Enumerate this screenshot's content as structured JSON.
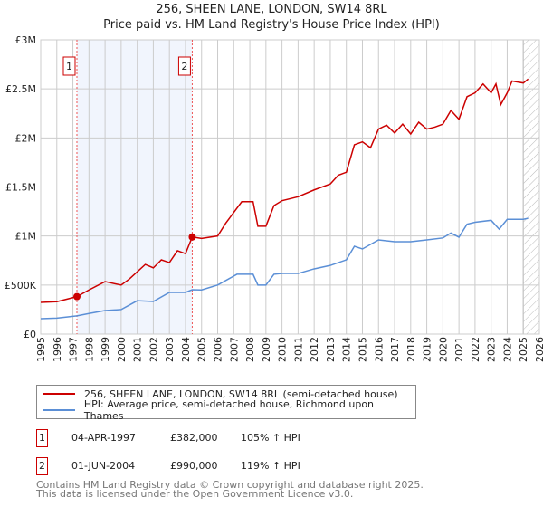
{
  "chart_data": {
    "type": "line",
    "title": "256, SHEEN LANE, LONDON, SW14 8RL",
    "subtitle": "Price paid vs. HM Land Registry's House Price Index (HPI)",
    "xlim": [
      1995,
      2026
    ],
    "ylim": [
      0,
      3000000
    ],
    "ytick_values": [
      0,
      500000,
      1000000,
      1500000,
      2000000,
      2500000,
      3000000
    ],
    "ytick_labels": [
      "£0",
      "£500K",
      "£1M",
      "£1.5M",
      "£2M",
      "£2.5M",
      "£3M"
    ],
    "xtick_labels": [
      "1995",
      "1996",
      "1997",
      "1998",
      "1999",
      "2000",
      "2001",
      "2002",
      "2003",
      "2004",
      "2005",
      "2006",
      "2007",
      "2008",
      "2009",
      "2010",
      "2011",
      "2012",
      "2013",
      "2014",
      "2015",
      "2016",
      "2017",
      "2018",
      "2019",
      "2020",
      "2021",
      "2022",
      "2023",
      "2024",
      "2025",
      "2026"
    ],
    "grid": true,
    "shaded_range": [
      1997.25,
      2004.42
    ],
    "series": [
      {
        "name": "256, SHEEN LANE, LONDON, SW14 8RL (semi-detached house)",
        "color": "#cc0000",
        "x": [
          1995,
          1996,
          1997.25,
          1998,
          1999,
          2000,
          2000.5,
          2001.5,
          2002,
          2002.5,
          2003,
          2003.5,
          2004,
          2004.42,
          2005,
          2006,
          2006.5,
          2007.5,
          2008.2,
          2008.5,
          2009,
          2009.5,
          2010,
          2011,
          2012,
          2013,
          2013.5,
          2014,
          2014.5,
          2015,
          2015.5,
          2016,
          2016.5,
          2017,
          2017.5,
          2018,
          2018.5,
          2019,
          2019.5,
          2020,
          2020.5,
          2021,
          2021.5,
          2022,
          2022.5,
          2023,
          2023.3,
          2023.6,
          2024,
          2024.3,
          2025,
          2025.3
        ],
        "y": [
          323000,
          330000,
          382000,
          450000,
          535000,
          500000,
          560000,
          710000,
          675000,
          757000,
          729000,
          850000,
          820000,
          990000,
          975000,
          1000000,
          1130000,
          1350000,
          1350000,
          1100000,
          1100000,
          1310000,
          1360000,
          1400000,
          1470000,
          1530000,
          1620000,
          1650000,
          1930000,
          1960000,
          1900000,
          2090000,
          2130000,
          2050000,
          2140000,
          2040000,
          2160000,
          2090000,
          2110000,
          2140000,
          2280000,
          2190000,
          2420000,
          2460000,
          2550000,
          2460000,
          2550000,
          2340000,
          2460000,
          2580000,
          2560000,
          2600000
        ]
      },
      {
        "name": "HPI: Average price, semi-detached house, Richmond upon Thames",
        "color": "#5b8fd6",
        "x": [
          1995,
          1996,
          1997.25,
          1998,
          1999,
          2000,
          2001,
          2002,
          2003,
          2004,
          2004.42,
          2005,
          2006,
          2007.2,
          2008.2,
          2008.5,
          2009,
          2009.5,
          2010,
          2011,
          2012,
          2013,
          2014,
          2014.5,
          2015,
          2016,
          2017,
          2018,
          2019,
          2020,
          2020.5,
          2021,
          2021.5,
          2022,
          2023,
          2023.5,
          2024,
          2025,
          2025.3
        ],
        "y": [
          157000,
          163000,
          186000,
          210000,
          240000,
          250000,
          340000,
          332000,
          425000,
          425000,
          452000,
          450000,
          500000,
          610000,
          610000,
          500000,
          500000,
          610000,
          618000,
          618000,
          665000,
          700000,
          757000,
          895000,
          868000,
          960000,
          942000,
          942000,
          960000,
          980000,
          1030000,
          988000,
          1120000,
          1140000,
          1160000,
          1070000,
          1170000,
          1170000,
          1180000
        ]
      }
    ],
    "sales": [
      {
        "label": "1",
        "x": 1997.25,
        "y": 382000,
        "date": "04-APR-1997",
        "price": "£382,000",
        "hpi": "105% ↑ HPI"
      },
      {
        "label": "2",
        "x": 2004.42,
        "y": 990000,
        "date": "01-JUN-2004",
        "price": "£990,000",
        "hpi": "119% ↑ HPI"
      }
    ],
    "forecast_hatch_from": 2025
  },
  "footer": {
    "line1": "Contains HM Land Registry data © Crown copyright and database right 2025.",
    "line2": "This data is licensed under the Open Government Licence v3.0."
  }
}
